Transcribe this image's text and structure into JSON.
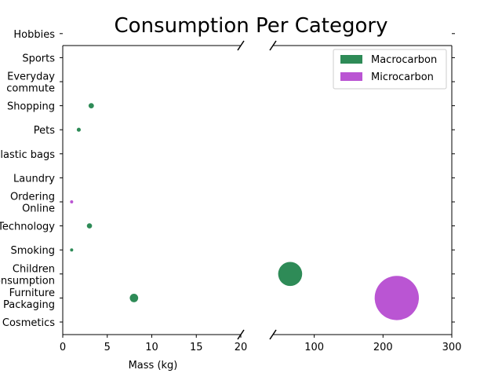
{
  "chart_data": {
    "type": "scatter",
    "title": "Consumption Per Category",
    "xlabel": "Mass (kg)",
    "ylabel": "",
    "broken_x_axis": true,
    "xlim_left": [
      0,
      20
    ],
    "xlim_right": [
      40,
      300
    ],
    "xticks_left": [
      0,
      5,
      10,
      15,
      20
    ],
    "xticks_right": [
      100,
      200,
      300
    ],
    "categories": [
      "Cosmetics",
      "Furniture\nPackaging",
      "Children\nConsumption",
      "Smoking",
      "Technology",
      "Ordering\nOnline",
      "Laundry",
      "Plastic bags",
      "Pets",
      "Shopping",
      "Everyday\ncommute",
      "Sports",
      "Hobbies"
    ],
    "legend": {
      "position": "top-right"
    },
    "series": [
      {
        "name": "Macrocarbon",
        "color": "#2e8b57",
        "points": [
          {
            "category": "Furniture\nPackaging",
            "x": 8
          },
          {
            "category": "Children\nConsumption",
            "x": 65
          },
          {
            "category": "Smoking",
            "x": 1
          },
          {
            "category": "Technology",
            "x": 3
          },
          {
            "category": "Pets",
            "x": 1.8
          },
          {
            "category": "Shopping",
            "x": 3.2
          }
        ]
      },
      {
        "name": "Microcarbon",
        "color": "#ba55d3",
        "points": [
          {
            "category": "Furniture\nPackaging",
            "x": 220
          },
          {
            "category": "Ordering\nOnline",
            "x": 1
          }
        ]
      }
    ]
  }
}
